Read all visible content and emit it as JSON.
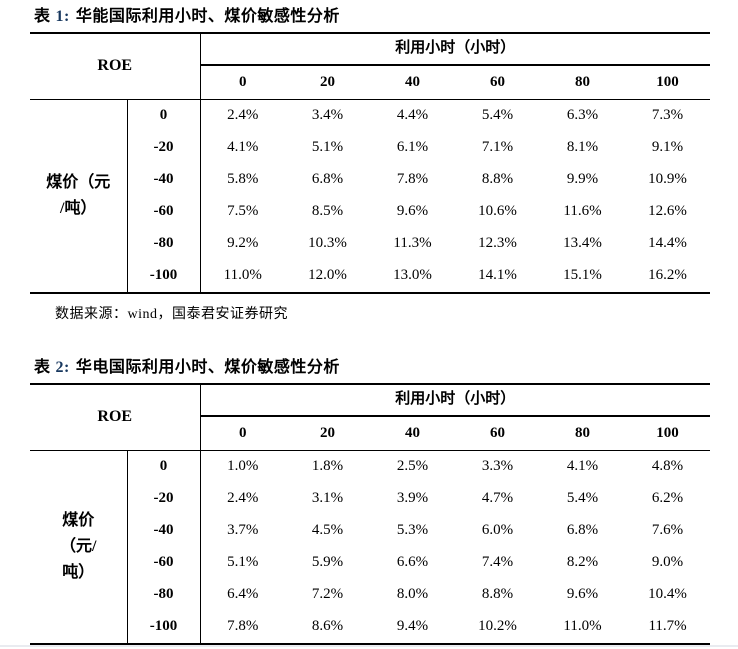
{
  "meta": {
    "background": "#FFFFFF",
    "text_color": "#000000",
    "border_color": "#000000",
    "title_number_color": "#17375E",
    "bottom_rule_color": "#E9EBF0"
  },
  "table1": {
    "title": {
      "tag": "表",
      "number": "1:",
      "text": "华能国际利用小时、煤价敏感性分析"
    },
    "corner_label": "ROE",
    "column_group_label": "利用小时（小时）",
    "row_group_label": "煤价（元/吨）",
    "row_group_label_lines": [
      "煤价（元",
      "/吨）"
    ],
    "columns": [
      "0",
      "20",
      "40",
      "60",
      "80",
      "100"
    ],
    "rows": [
      {
        "label": "0",
        "values": [
          "2.4%",
          "3.4%",
          "4.4%",
          "5.4%",
          "6.3%",
          "7.3%"
        ]
      },
      {
        "label": "-20",
        "values": [
          "4.1%",
          "5.1%",
          "6.1%",
          "7.1%",
          "8.1%",
          "9.1%"
        ]
      },
      {
        "label": "-40",
        "values": [
          "5.8%",
          "6.8%",
          "7.8%",
          "8.8%",
          "9.9%",
          "10.9%"
        ]
      },
      {
        "label": "-60",
        "values": [
          "7.5%",
          "8.5%",
          "9.6%",
          "10.6%",
          "11.6%",
          "12.6%"
        ]
      },
      {
        "label": "-80",
        "values": [
          "9.2%",
          "10.3%",
          "11.3%",
          "12.3%",
          "13.4%",
          "14.4%"
        ]
      },
      {
        "label": "-100",
        "values": [
          "11.0%",
          "12.0%",
          "13.0%",
          "14.1%",
          "15.1%",
          "16.2%"
        ]
      }
    ],
    "source": "数据来源：wind，国泰君安证券研究"
  },
  "table2": {
    "title": {
      "tag": "表",
      "number": "2:",
      "text": "华电国际利用小时、煤价敏感性分析"
    },
    "corner_label": "ROE",
    "column_group_label": "利用小时（小时）",
    "row_group_label": "煤价（元/吨）",
    "row_group_label_lines": [
      "煤价",
      "（元/",
      "吨）"
    ],
    "columns": [
      "0",
      "20",
      "40",
      "60",
      "80",
      "100"
    ],
    "rows": [
      {
        "label": "0",
        "values": [
          "1.0%",
          "1.8%",
          "2.5%",
          "3.3%",
          "4.1%",
          "4.8%"
        ]
      },
      {
        "label": "-20",
        "values": [
          "2.4%",
          "3.1%",
          "3.9%",
          "4.7%",
          "5.4%",
          "6.2%"
        ]
      },
      {
        "label": "-40",
        "values": [
          "3.7%",
          "4.5%",
          "5.3%",
          "6.0%",
          "6.8%",
          "7.6%"
        ]
      },
      {
        "label": "-60",
        "values": [
          "5.1%",
          "5.9%",
          "6.6%",
          "7.4%",
          "8.2%",
          "9.0%"
        ]
      },
      {
        "label": "-80",
        "values": [
          "6.4%",
          "7.2%",
          "8.0%",
          "8.8%",
          "9.6%",
          "10.4%"
        ]
      },
      {
        "label": "-100",
        "values": [
          "7.8%",
          "8.6%",
          "9.4%",
          "10.2%",
          "11.0%",
          "11.7%"
        ]
      }
    ]
  }
}
